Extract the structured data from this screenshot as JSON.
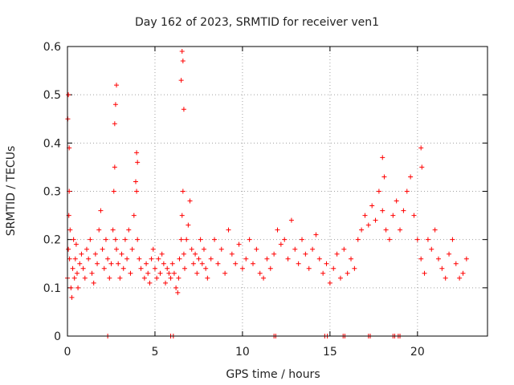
{
  "chart_data": {
    "type": "scatter",
    "title": "Day 162 of 2023, SRMTID for receiver ven1",
    "xlabel": "GPS time / hours",
    "ylabel": "SRMTID / TECUs",
    "xlim": [
      0,
      24
    ],
    "ylim": [
      0,
      0.6
    ],
    "xticks": [
      0,
      5,
      10,
      15,
      20
    ],
    "yticks": [
      0,
      0.1,
      0.2,
      0.3,
      0.4,
      0.5,
      0.6
    ],
    "xtick_labels": [
      "0",
      "5",
      "10",
      "15",
      "20"
    ],
    "ytick_labels": [
      "0",
      "0.1",
      "0.2",
      "0.3",
      "0.4",
      "0.5",
      "0.6"
    ],
    "grid": true,
    "marker": "+",
    "color": "#ff0000",
    "series": [
      {
        "name": "ven1",
        "x": [
          0.0,
          0.05,
          0.08,
          0.1,
          0.12,
          0.15,
          0.2,
          0.25,
          0.3,
          0.35,
          0.4,
          0.45,
          0.5,
          0.55,
          0.6,
          0.7,
          0.8,
          0.9,
          1.0,
          1.1,
          1.2,
          1.3,
          1.4,
          1.5,
          1.6,
          1.7,
          1.8,
          1.9,
          2.0,
          2.1,
          2.2,
          2.3,
          2.4,
          2.5,
          2.6,
          2.65,
          2.7,
          2.75,
          2.8,
          2.9,
          3.0,
          3.1,
          3.2,
          3.3,
          3.4,
          3.5,
          3.6,
          3.7,
          3.8,
          3.9,
          3.95,
          4.0,
          4.1,
          4.2,
          4.4,
          4.5,
          4.6,
          4.7,
          4.8,
          4.9,
          5.0,
          5.1,
          5.2,
          5.3,
          5.4,
          5.5,
          5.6,
          5.7,
          5.8,
          5.9,
          6.0,
          6.1,
          6.2,
          6.3,
          6.35,
          6.4,
          6.5,
          6.55,
          6.6,
          6.65,
          6.7,
          6.8,
          6.9,
          7.0,
          7.1,
          7.2,
          7.3,
          7.4,
          7.5,
          7.6,
          7.7,
          7.8,
          7.9,
          8.0,
          8.2,
          8.4,
          8.6,
          8.8,
          9.0,
          9.2,
          9.4,
          9.6,
          9.8,
          10.0,
          10.2,
          10.4,
          10.6,
          10.8,
          11.0,
          11.2,
          11.4,
          11.6,
          11.8,
          12.0,
          12.2,
          12.4,
          12.6,
          12.8,
          13.0,
          13.2,
          13.4,
          13.6,
          13.8,
          14.0,
          14.2,
          14.4,
          14.6,
          14.8,
          15.0,
          15.2,
          15.4,
          15.6,
          15.8,
          16.0,
          16.2,
          16.4,
          16.6,
          16.8,
          17.0,
          17.2,
          17.4,
          17.6,
          17.8,
          18.0,
          18.2,
          18.4,
          18.6,
          18.8,
          19.0,
          19.2,
          19.4,
          19.6,
          19.8,
          20.0,
          20.2,
          20.4,
          20.6,
          20.8,
          21.0,
          21.2,
          21.4,
          21.6,
          21.8,
          22.0,
          22.2,
          22.4,
          22.6,
          22.8,
          2.3,
          5.9,
          6.05,
          11.8,
          11.9,
          14.7,
          14.85,
          15.75,
          15.85,
          17.2,
          17.3,
          18.6,
          18.7,
          18.9,
          19.0,
          0.02,
          0.05,
          0.1,
          2.75,
          2.8,
          2.7,
          6.55,
          6.6,
          6.5,
          6.65,
          3.95,
          4.0,
          20.2,
          20.25,
          18.0,
          18.1
        ],
        "y": [
          0.12,
          0.18,
          0.25,
          0.3,
          0.16,
          0.22,
          0.1,
          0.08,
          0.14,
          0.2,
          0.12,
          0.16,
          0.19,
          0.13,
          0.1,
          0.15,
          0.17,
          0.14,
          0.12,
          0.18,
          0.16,
          0.2,
          0.13,
          0.11,
          0.17,
          0.15,
          0.22,
          0.26,
          0.18,
          0.14,
          0.2,
          0.16,
          0.12,
          0.15,
          0.22,
          0.3,
          0.35,
          0.2,
          0.18,
          0.15,
          0.12,
          0.17,
          0.14,
          0.2,
          0.16,
          0.22,
          0.13,
          0.18,
          0.25,
          0.32,
          0.3,
          0.2,
          0.16,
          0.14,
          0.12,
          0.15,
          0.13,
          0.11,
          0.16,
          0.18,
          0.14,
          0.12,
          0.16,
          0.13,
          0.17,
          0.15,
          0.11,
          0.14,
          0.13,
          0.12,
          0.15,
          0.13,
          0.1,
          0.09,
          0.12,
          0.16,
          0.2,
          0.25,
          0.3,
          0.17,
          0.14,
          0.2,
          0.23,
          0.28,
          0.18,
          0.15,
          0.17,
          0.13,
          0.16,
          0.2,
          0.15,
          0.18,
          0.14,
          0.12,
          0.16,
          0.2,
          0.15,
          0.18,
          0.13,
          0.22,
          0.17,
          0.15,
          0.19,
          0.14,
          0.16,
          0.2,
          0.15,
          0.18,
          0.13,
          0.12,
          0.16,
          0.14,
          0.17,
          0.22,
          0.19,
          0.2,
          0.16,
          0.24,
          0.18,
          0.15,
          0.2,
          0.17,
          0.14,
          0.18,
          0.21,
          0.16,
          0.13,
          0.15,
          0.11,
          0.14,
          0.17,
          0.12,
          0.18,
          0.13,
          0.16,
          0.14,
          0.2,
          0.22,
          0.25,
          0.23,
          0.27,
          0.24,
          0.3,
          0.26,
          0.22,
          0.2,
          0.25,
          0.28,
          0.22,
          0.26,
          0.3,
          0.33,
          0.25,
          0.2,
          0.16,
          0.13,
          0.2,
          0.18,
          0.22,
          0.16,
          0.14,
          0.12,
          0.17,
          0.2,
          0.15,
          0.12,
          0.13,
          0.16,
          0.0,
          0.0,
          0.0,
          0.0,
          0.0,
          0.0,
          0.0,
          0.0,
          0.0,
          0.0,
          0.0,
          0.0,
          0.0,
          0.0,
          0.0,
          0.45,
          0.5,
          0.39,
          0.48,
          0.52,
          0.44,
          0.59,
          0.57,
          0.53,
          0.47,
          0.38,
          0.36,
          0.39,
          0.35,
          0.37,
          0.33
        ]
      }
    ]
  }
}
